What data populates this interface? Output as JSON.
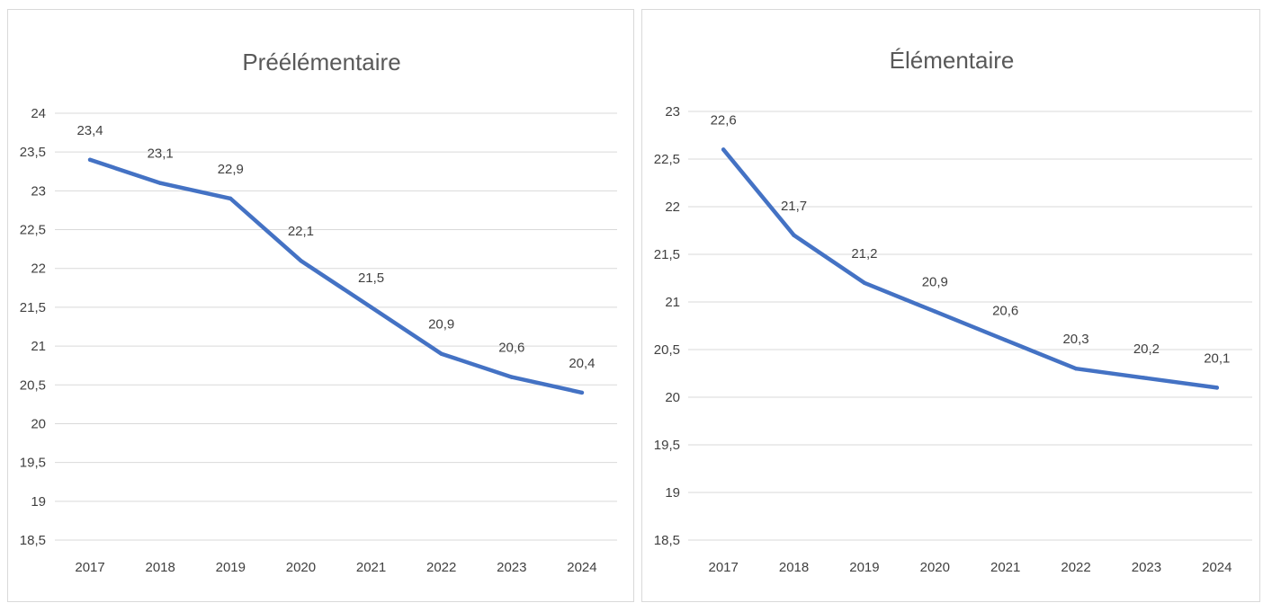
{
  "chart_data": [
    {
      "type": "line",
      "title": "Préélémentaire",
      "categories": [
        "2017",
        "2018",
        "2019",
        "2020",
        "2021",
        "2022",
        "2023",
        "2024"
      ],
      "series": [
        {
          "values": [
            23.4,
            23.1,
            22.9,
            22.1,
            21.5,
            20.9,
            20.6,
            20.4
          ]
        }
      ],
      "data_labels": [
        "23,4",
        "23,1",
        "22,9",
        "22,1",
        "21,5",
        "20,9",
        "20,6",
        "20,4"
      ],
      "ylim": [
        18.5,
        24
      ],
      "yticks": [
        18.5,
        19,
        19.5,
        20,
        20.5,
        21,
        21.5,
        22,
        22.5,
        23,
        23.5,
        24
      ],
      "ytick_labels": [
        "18,5",
        "19",
        "19,5",
        "20",
        "20,5",
        "21",
        "21,5",
        "22",
        "22,5",
        "23",
        "23,5",
        "24"
      ],
      "grid": true,
      "legend": "none",
      "line_color": "#4472C4"
    },
    {
      "type": "line",
      "title": "Élémentaire",
      "categories": [
        "2017",
        "2018",
        "2019",
        "2020",
        "2021",
        "2022",
        "2023",
        "2024"
      ],
      "series": [
        {
          "values": [
            22.6,
            21.7,
            21.2,
            20.9,
            20.6,
            20.3,
            20.2,
            20.1
          ]
        }
      ],
      "data_labels": [
        "22,6",
        "21,7",
        "21,2",
        "20,9",
        "20,6",
        "20,3",
        "20,2",
        "20,1"
      ],
      "ylim": [
        18.5,
        23
      ],
      "yticks": [
        18.5,
        19,
        19.5,
        20,
        20.5,
        21,
        21.5,
        22,
        22.5,
        23
      ],
      "ytick_labels": [
        "18,5",
        "19",
        "19,5",
        "20",
        "20,5",
        "21",
        "21,5",
        "22",
        "22,5",
        "23"
      ],
      "grid": true,
      "legend": "none",
      "line_color": "#4472C4"
    }
  ]
}
